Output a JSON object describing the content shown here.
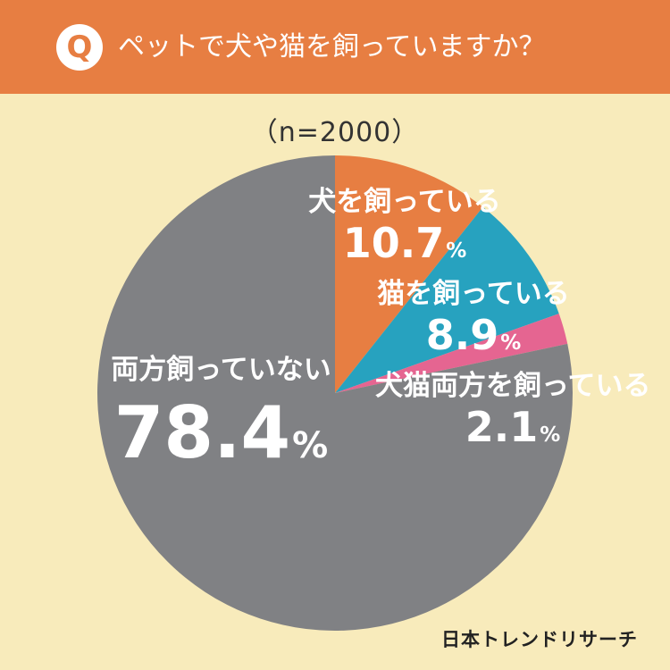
{
  "header": {
    "q_label": "Q",
    "title": "ペットで犬や猫を飼っていますか？"
  },
  "sample_size": "（n=2000）",
  "chart_data": {
    "type": "pie",
    "title": "ペットで犬や猫を飼っていますか？",
    "subtitle": "（n=2000）",
    "slices": [
      {
        "label": "犬を飼っている",
        "value": 10.7,
        "display": "10.7",
        "unit": "%",
        "color": "#e77e42"
      },
      {
        "label": "猫を飼っている",
        "value": 8.9,
        "display": "8.9",
        "unit": "%",
        "color": "#27a2bf"
      },
      {
        "label": "犬猫両方を飼っている",
        "value": 2.1,
        "display": "2.1",
        "unit": "%",
        "color": "#e56591"
      },
      {
        "label": "両方飼っていない",
        "value": 78.4,
        "display": "78.4",
        "unit": "%",
        "color": "#808184"
      }
    ]
  },
  "brand": "日本トレンドリサーチ"
}
